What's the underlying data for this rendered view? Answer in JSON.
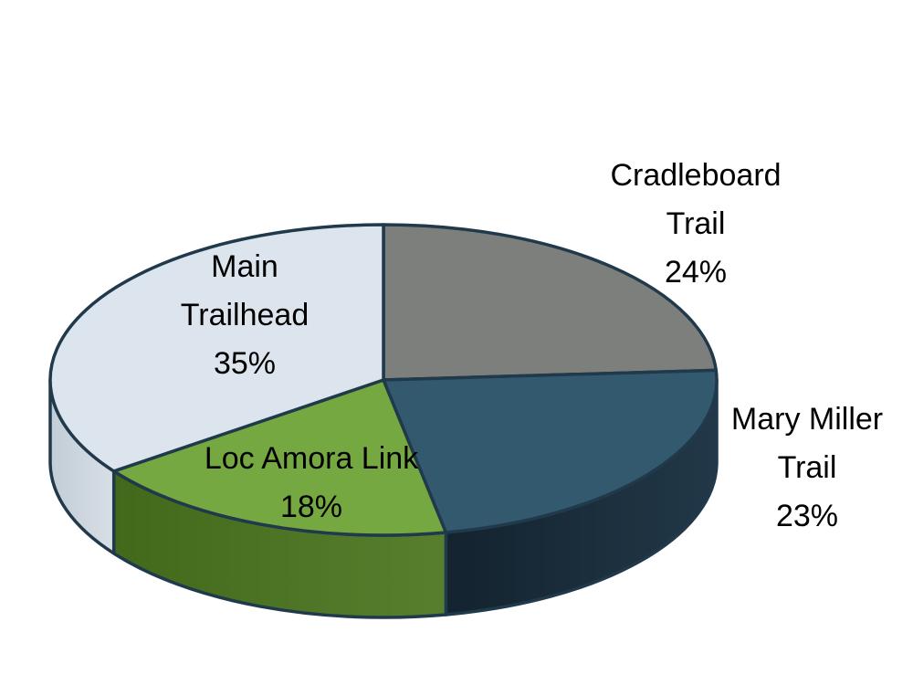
{
  "chart_data": {
    "type": "pie",
    "style": "3d",
    "title": "",
    "legend": "none",
    "labels_position": "outside, category name + percent",
    "start_angle_deg": -90,
    "direction": "clockwise",
    "background": "#FFFFFF",
    "outline_color": "#20394B",
    "slices": [
      {
        "label": "Cradleboard Trail",
        "value": 24,
        "pct_label": "24%",
        "label_lines": [
          "Cradleboard",
          "Trail",
          "24%"
        ],
        "color_top": "#7D7F7D",
        "color_side": [
          "#5A5F62",
          "#6A6E6C"
        ]
      },
      {
        "label": "Mary Miller Trail",
        "value": 23,
        "pct_label": "23%",
        "label_lines": [
          "Mary Miller",
          "Trail",
          "23%"
        ],
        "color_top": "#33596F",
        "color_side": [
          "#13232F",
          "#223848"
        ]
      },
      {
        "label": "Loc Amora Link",
        "value": 18,
        "pct_label": "18%",
        "label_lines": [
          "Loc Amora Link",
          "18%"
        ],
        "color_top": "#76A841",
        "color_side": [
          "#42691B",
          "#577F2E"
        ]
      },
      {
        "label": "Main Trailhead",
        "value": 35,
        "pct_label": "35%",
        "label_lines": [
          "Main",
          "Trailhead",
          "35%"
        ],
        "color_top": "#DCE5EE",
        "color_side": [
          "#C3CDD6",
          "#D7DFE6"
        ]
      }
    ]
  }
}
